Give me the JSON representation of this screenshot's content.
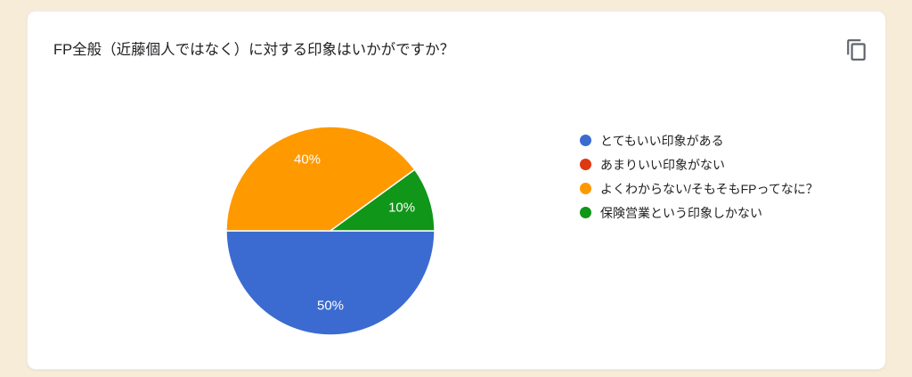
{
  "page": {
    "background_color": "#f6ecd8",
    "card_background": "#ffffff"
  },
  "card": {
    "title": "FP全般（近藤個人ではなく）に対する印象はいかがですか？",
    "copy_icon": "content-copy-icon",
    "copy_icon_color": "#5f6368"
  },
  "chart_data": {
    "type": "pie",
    "title": "FP全般（近藤個人ではなく）に対する印象はいかがですか？",
    "categories": [
      "とてもいい印象がある",
      "あまりいい印象がない",
      "よくわからない/そもそもFPってなに？",
      "保険営業という印象しかない"
    ],
    "values": [
      50,
      0,
      40,
      10
    ],
    "unit": "%",
    "colors": [
      "#3b6bd0",
      "#dc3912",
      "#ff9900",
      "#109618"
    ],
    "visible_slice_labels": [
      "50%",
      "40%",
      "10%"
    ],
    "legend_position": "right",
    "start_angle": "3-oclock",
    "direction": "clockwise",
    "label_text_color": "#ffffff"
  }
}
